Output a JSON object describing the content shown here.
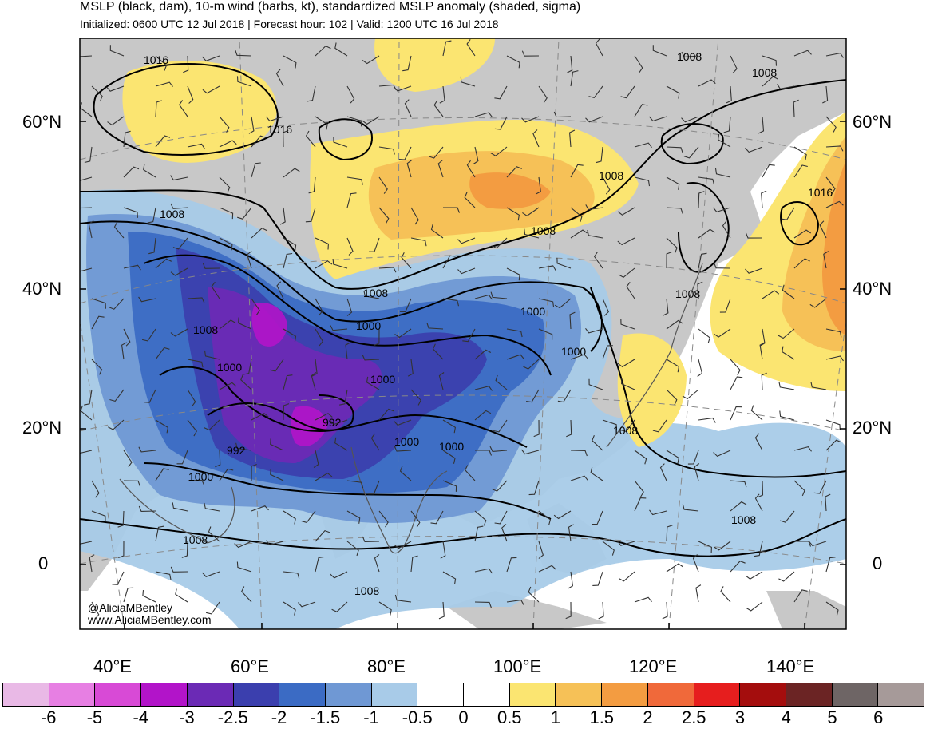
{
  "header": {
    "title": "MSLP (black, dam), 10-m wind (barbs, kt), standardized MSLP anomaly (shaded, sigma)",
    "subtitle": "Initialized: 0600 UTC 12 Jul 2018 | Forecast hour: 102 | Valid: 1200 UTC 16 Jul 2018"
  },
  "map": {
    "lat_labels": [
      "60°N",
      "40°N",
      "20°N",
      "0"
    ],
    "lon_labels": [
      "40°E",
      "60°E",
      "80°E",
      "100°E",
      "120°E",
      "140°E"
    ],
    "isobar_labels": [
      "1016",
      "1016",
      "1008",
      "1008",
      "1008",
      "1016",
      "1008",
      "1008",
      "1008",
      "1000",
      "1008",
      "1000",
      "1000",
      "1000",
      "1008",
      "1000",
      "992",
      "992",
      "1000",
      "1000",
      "1008",
      "1000",
      "1008",
      "1008",
      "1008"
    ],
    "colors": {
      "land": "#c8c8c8",
      "coast": "#555555",
      "isobar": "#000000",
      "wind": "#333333"
    }
  },
  "colorbar": {
    "labels": [
      "-6",
      "-5",
      "-4",
      "-3",
      "-2.5",
      "-2",
      "-1.5",
      "-1",
      "-0.5",
      "0",
      "0.5",
      "1",
      "1.5",
      "2",
      "2.5",
      "3",
      "4",
      "5",
      "6"
    ],
    "colors": [
      "#e9b9e6",
      "#e77fe3",
      "#d84ad6",
      "#b214c9",
      "#6b2ab5",
      "#3b3fae",
      "#3b6bc4",
      "#6f98d4",
      "#a8cbe8",
      "#ffffff",
      "#ffffff",
      "#fbe571",
      "#f6c157",
      "#f39c41",
      "#f0693a",
      "#e61e1e",
      "#a40d0d",
      "#6b2424",
      "#6e6565",
      "#a69a99"
    ]
  },
  "credits": {
    "twitter": "@AliciaMBentley",
    "website": "www.AliciaMBentley.com"
  }
}
